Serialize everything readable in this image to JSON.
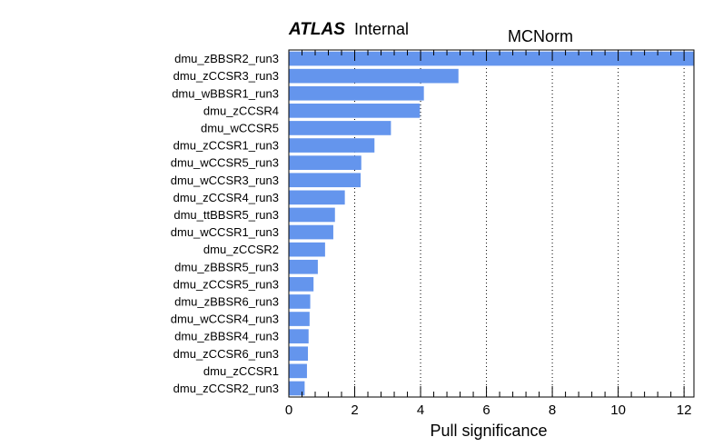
{
  "header": {
    "experiment": "ATLAS",
    "status": "Internal"
  },
  "chart_data": {
    "type": "bar",
    "orientation": "horizontal",
    "title": "MCNorm",
    "xlabel": "Pull significance",
    "ylabel": "",
    "categories": [
      "dmu_zBBSR2_run3",
      "dmu_zCCSR3_run3",
      "dmu_wBBSR1_run3",
      "dmu_zCCSR4",
      "dmu_wCCSR5",
      "dmu_zCCSR1_run3",
      "dmu_wCCSR5_run3",
      "dmu_wCCSR3_run3",
      "dmu_zCCSR4_run3",
      "dmu_ttBBSR5_run3",
      "dmu_wCCSR1_run3",
      "dmu_zCCSR2",
      "dmu_zBBSR5_run3",
      "dmu_zCCSR5_run3",
      "dmu_zBBSR6_run3",
      "dmu_wCCSR4_run3",
      "dmu_zBBSR4_run3",
      "dmu_zCCSR6_run3",
      "dmu_zCCSR1",
      "dmu_zCCSR2_run3"
    ],
    "values": [
      12.3,
      5.15,
      4.1,
      3.98,
      3.1,
      2.6,
      2.2,
      2.18,
      1.7,
      1.4,
      1.35,
      1.1,
      0.88,
      0.75,
      0.65,
      0.63,
      0.6,
      0.58,
      0.55,
      0.48
    ],
    "xlim": [
      0,
      12.3
    ],
    "xticks": [
      0,
      2,
      4,
      6,
      8,
      10,
      12
    ],
    "grid": "x-dotted",
    "bar_color": "#6495ed"
  }
}
